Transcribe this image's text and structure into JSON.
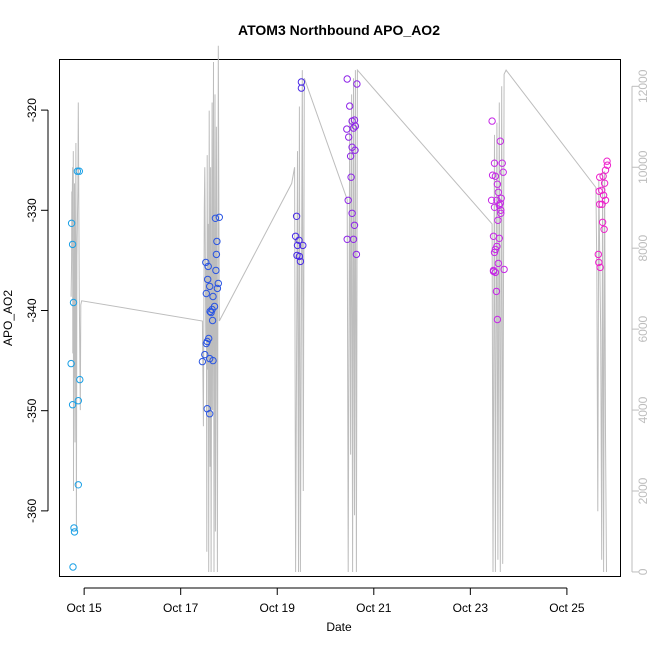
{
  "chart_data": {
    "type": "scatter",
    "title": "ATOM3 Northbound APO_AO2",
    "xlabel": "Date",
    "ylabel": "APO_AO2",
    "x_ticks": [
      "Oct 15",
      "Oct 17",
      "Oct 19",
      "Oct 21",
      "Oct 23",
      "Oct 25"
    ],
    "x_tick_days": [
      15,
      17,
      19,
      21,
      23,
      25
    ],
    "xlim": [
      14.5,
      26.1
    ],
    "ylim": [
      -366.5,
      -315.0
    ],
    "y_ticks": [
      -320,
      -330,
      -340,
      -350,
      -360
    ],
    "y2lim": [
      -100,
      12650
    ],
    "y2_ticks": [
      0,
      2000,
      4000,
      6000,
      8000,
      10000,
      12000
    ],
    "y_reversed": true,
    "grid": false,
    "secondary_line_color": "#bdbdbd",
    "series": [
      {
        "color": "#1aa0e6",
        "points": [
          [
            14.74,
            -331.3
          ],
          [
            14.76,
            -333.4
          ],
          [
            14.73,
            -345.3
          ],
          [
            14.78,
            -339.2
          ],
          [
            14.76,
            -349.4
          ],
          [
            14.79,
            -361.7
          ],
          [
            14.8,
            -362.1
          ],
          [
            14.77,
            -365.6
          ],
          [
            14.86,
            -326.1
          ],
          [
            14.9,
            -326.1
          ],
          [
            14.88,
            -349.0
          ],
          [
            14.91,
            -346.9
          ],
          [
            14.88,
            -357.4
          ]
        ]
      },
      {
        "color": "#2a55e2",
        "points": [
          [
            17.45,
            -345.1
          ],
          [
            17.5,
            -344.4
          ],
          [
            17.53,
            -343.3
          ],
          [
            17.55,
            -343.1
          ],
          [
            17.58,
            -342.8
          ],
          [
            17.52,
            -335.2
          ],
          [
            17.56,
            -336.9
          ],
          [
            17.6,
            -337.6
          ],
          [
            17.57,
            -335.6
          ],
          [
            17.53,
            -338.3
          ],
          [
            17.61,
            -340.1
          ],
          [
            17.63,
            -340.2
          ],
          [
            17.65,
            -339.9
          ],
          [
            17.66,
            -341.0
          ],
          [
            17.7,
            -339.6
          ],
          [
            17.6,
            -344.8
          ],
          [
            17.67,
            -345.0
          ],
          [
            17.55,
            -349.8
          ],
          [
            17.6,
            -350.3
          ],
          [
            17.72,
            -330.8
          ],
          [
            17.8,
            -330.7
          ],
          [
            17.75,
            -333.1
          ],
          [
            17.74,
            -334.4
          ],
          [
            17.73,
            -336.0
          ],
          [
            17.78,
            -337.3
          ],
          [
            17.76,
            -337.8
          ],
          [
            17.67,
            -338.6
          ]
        ]
      },
      {
        "color": "#4a2be6",
        "points": [
          [
            19.5,
            -317.2
          ],
          [
            19.5,
            -317.8
          ],
          [
            19.4,
            -330.6
          ],
          [
            19.38,
            -332.6
          ],
          [
            19.42,
            -333.5
          ],
          [
            19.45,
            -333.0
          ],
          [
            19.53,
            -333.5
          ],
          [
            19.41,
            -334.5
          ],
          [
            19.46,
            -334.6
          ],
          [
            19.48,
            -335.1
          ]
        ]
      },
      {
        "color": "#8e24e8",
        "points": [
          [
            20.45,
            -316.9
          ],
          [
            20.65,
            -317.4
          ],
          [
            20.5,
            -319.6
          ],
          [
            20.55,
            -321.1
          ],
          [
            20.6,
            -321.0
          ],
          [
            20.62,
            -321.6
          ],
          [
            20.58,
            -321.8
          ],
          [
            20.44,
            -321.9
          ],
          [
            20.48,
            -322.7
          ],
          [
            20.55,
            -323.7
          ],
          [
            20.61,
            -324.0
          ],
          [
            20.53,
            -326.7
          ],
          [
            20.47,
            -329.0
          ],
          [
            20.55,
            -330.3
          ],
          [
            20.6,
            -331.5
          ],
          [
            20.45,
            -332.9
          ],
          [
            20.58,
            -332.9
          ],
          [
            20.64,
            -334.4
          ],
          [
            20.52,
            -324.6
          ]
        ]
      },
      {
        "color": "#c628e6",
        "points": [
          [
            23.45,
            -321.1
          ],
          [
            23.5,
            -325.3
          ],
          [
            23.46,
            -326.5
          ],
          [
            23.52,
            -326.6
          ],
          [
            23.56,
            -327.4
          ],
          [
            23.58,
            -328.2
          ],
          [
            23.55,
            -329.0
          ],
          [
            23.5,
            -329.7
          ],
          [
            23.44,
            -329.0
          ],
          [
            23.48,
            -332.6
          ],
          [
            23.52,
            -333.9
          ],
          [
            23.55,
            -333.6
          ],
          [
            23.6,
            -332.8
          ],
          [
            23.5,
            -334.2
          ],
          [
            23.48,
            -336.0
          ],
          [
            23.52,
            -336.2
          ],
          [
            23.58,
            -335.3
          ],
          [
            23.6,
            -329.5
          ],
          [
            23.62,
            -329.3
          ],
          [
            23.64,
            -328.8
          ],
          [
            23.63,
            -330.0
          ],
          [
            23.57,
            -331.0
          ],
          [
            23.54,
            -338.1
          ],
          [
            23.56,
            -340.9
          ],
          [
            23.48,
            -336.1
          ],
          [
            23.62,
            -323.1
          ],
          [
            23.68,
            -326.2
          ],
          [
            23.66,
            -325.3
          ],
          [
            23.7,
            -335.9
          ],
          [
            23.63,
            -330.3
          ]
        ]
      },
      {
        "color": "#ee22cc",
        "points": [
          [
            25.83,
            -325.1
          ],
          [
            25.84,
            -325.5
          ],
          [
            25.8,
            -326.0
          ],
          [
            25.75,
            -326.6
          ],
          [
            25.68,
            -326.7
          ],
          [
            25.78,
            -327.3
          ],
          [
            25.72,
            -328.0
          ],
          [
            25.67,
            -328.1
          ],
          [
            25.76,
            -328.5
          ],
          [
            25.8,
            -329.0
          ],
          [
            25.73,
            -329.4
          ],
          [
            25.68,
            -329.4
          ],
          [
            25.74,
            -331.2
          ],
          [
            25.77,
            -331.9
          ],
          [
            25.65,
            -334.4
          ],
          [
            25.66,
            -335.2
          ],
          [
            25.69,
            -335.7
          ]
        ]
      }
    ],
    "secondary_line": [
      [
        14.73,
        6800
      ],
      [
        14.74,
        7700
      ],
      [
        14.745,
        9400
      ],
      [
        14.75,
        8900
      ],
      [
        14.76,
        10000
      ],
      [
        14.765,
        5400
      ],
      [
        14.77,
        8200
      ],
      [
        14.775,
        10400
      ],
      [
        14.78,
        2000
      ],
      [
        14.785,
        7600
      ],
      [
        14.79,
        6900
      ],
      [
        14.795,
        4800
      ],
      [
        14.8,
        9600
      ],
      [
        14.81,
        3200
      ],
      [
        14.82,
        7000
      ],
      [
        14.83,
        10600
      ],
      [
        14.84,
        1000
      ],
      [
        14.85,
        7800
      ],
      [
        14.87,
        9500
      ],
      [
        14.88,
        11600
      ],
      [
        14.9,
        6800
      ],
      [
        14.92,
        4000
      ],
      [
        14.93,
        6600
      ],
      [
        14.95,
        6700
      ],
      [
        17.45,
        6200
      ],
      [
        17.47,
        3600
      ],
      [
        17.49,
        9000
      ],
      [
        17.5,
        10000
      ],
      [
        17.52,
        5700
      ],
      [
        17.53,
        7500
      ],
      [
        17.54,
        500
      ],
      [
        17.55,
        10300
      ],
      [
        17.56,
        5000
      ],
      [
        17.57,
        8600
      ],
      [
        17.58,
        0
      ],
      [
        17.59,
        11400
      ],
      [
        17.61,
        2600
      ],
      [
        17.62,
        10000
      ],
      [
        17.63,
        0
      ],
      [
        17.65,
        11600
      ],
      [
        17.66,
        4000
      ],
      [
        17.68,
        12600
      ],
      [
        17.69,
        0
      ],
      [
        17.71,
        11800
      ],
      [
        17.72,
        1000
      ],
      [
        17.74,
        11000
      ],
      [
        17.76,
        0
      ],
      [
        17.78,
        13000
      ],
      [
        17.8,
        6200
      ],
      [
        19.3,
        9600
      ],
      [
        19.36,
        10000
      ],
      [
        19.38,
        0
      ],
      [
        19.42,
        10400
      ],
      [
        19.44,
        0
      ],
      [
        19.46,
        11500
      ],
      [
        19.48,
        0
      ],
      [
        19.52,
        12400
      ],
      [
        19.54,
        2000
      ],
      [
        19.56,
        12200
      ],
      [
        20.45,
        9200
      ],
      [
        20.47,
        0
      ],
      [
        20.5,
        11200
      ],
      [
        20.52,
        2900
      ],
      [
        20.54,
        11800
      ],
      [
        20.56,
        0
      ],
      [
        20.58,
        12200
      ],
      [
        20.6,
        1400
      ],
      [
        20.62,
        12400
      ],
      [
        20.64,
        0
      ],
      [
        20.66,
        12400
      ],
      [
        23.45,
        8600
      ],
      [
        23.47,
        0
      ],
      [
        23.5,
        10800
      ],
      [
        23.52,
        0
      ],
      [
        23.55,
        11100
      ],
      [
        23.57,
        300
      ],
      [
        23.6,
        11600
      ],
      [
        23.62,
        0
      ],
      [
        23.65,
        12000
      ],
      [
        23.67,
        200
      ],
      [
        23.7,
        12300
      ],
      [
        23.74,
        12400
      ],
      [
        25.6,
        9500
      ],
      [
        25.62,
        7600
      ],
      [
        25.64,
        1500
      ],
      [
        25.66,
        9700
      ],
      [
        25.7,
        5900
      ],
      [
        25.72,
        300
      ],
      [
        25.74,
        9900
      ],
      [
        25.76,
        0
      ],
      [
        25.78,
        9900
      ],
      [
        25.8,
        3400
      ],
      [
        25.82,
        0
      ]
    ]
  }
}
